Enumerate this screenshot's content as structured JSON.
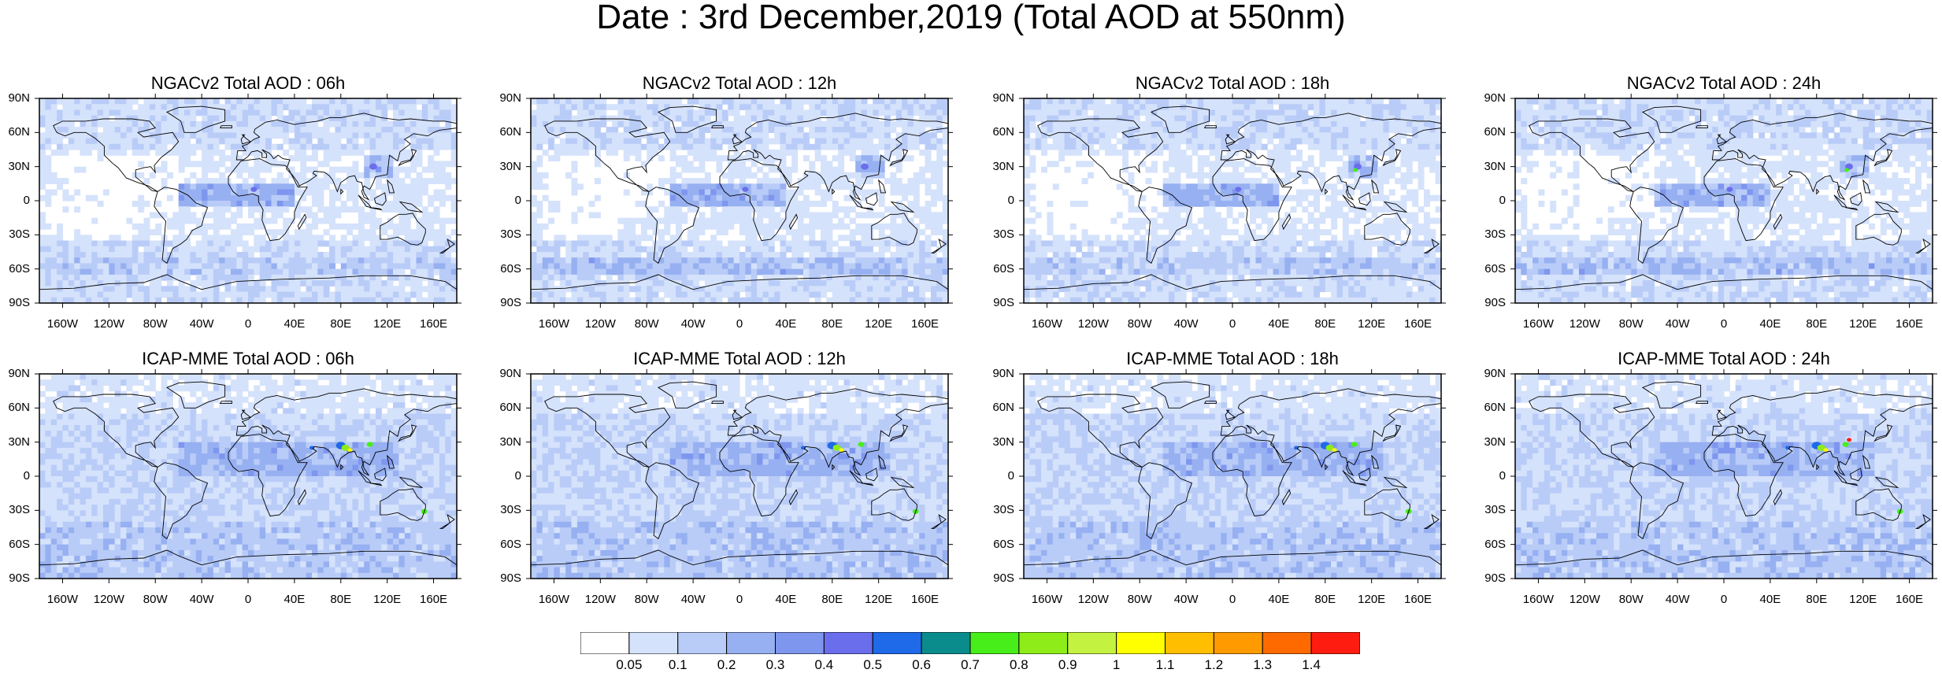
{
  "title": "Date : 3rd December,2019 (Total AOD at 550nm)",
  "panels": [
    {
      "title": "NGACv2 Total AOD : 06h",
      "model": "NGACv2"
    },
    {
      "title": "NGACv2 Total AOD : 12h",
      "model": "NGACv2"
    },
    {
      "title": "NGACv2 Total AOD : 18h",
      "model": "NGACv2"
    },
    {
      "title": "NGACv2 Total AOD : 24h",
      "model": "NGACv2"
    },
    {
      "title": "ICAP-MME Total AOD : 06h",
      "model": "ICAP-MME"
    },
    {
      "title": "ICAP-MME Total AOD : 12h",
      "model": "ICAP-MME"
    },
    {
      "title": "ICAP-MME Total AOD : 18h",
      "model": "ICAP-MME"
    },
    {
      "title": "ICAP-MME Total AOD : 24h",
      "model": "ICAP-MME"
    }
  ],
  "lat_labels": [
    "90N",
    "60N",
    "30N",
    "0",
    "30S",
    "60S",
    "90S"
  ],
  "lon_labels": [
    "160W",
    "120W",
    "80W",
    "40W",
    "0",
    "40E",
    "80E",
    "120E",
    "160E"
  ],
  "colorbar": {
    "labels": [
      "0.05",
      "0.1",
      "0.2",
      "0.3",
      "0.4",
      "0.5",
      "0.6",
      "0.7",
      "0.8",
      "0.9",
      "1",
      "1.1",
      "1.2",
      "1.3",
      "1.4"
    ],
    "colors": [
      "#ffffff",
      "#d5e2fb",
      "#b9ccf8",
      "#97b0f1",
      "#7e96ee",
      "#6a6eec",
      "#1e6ae8",
      "#0a8c8c",
      "#48ee1a",
      "#8eec18",
      "#c4f240",
      "#ffff00",
      "#ffbe00",
      "#ff9a00",
      "#ff6a00",
      "#fe1c10"
    ]
  }
}
